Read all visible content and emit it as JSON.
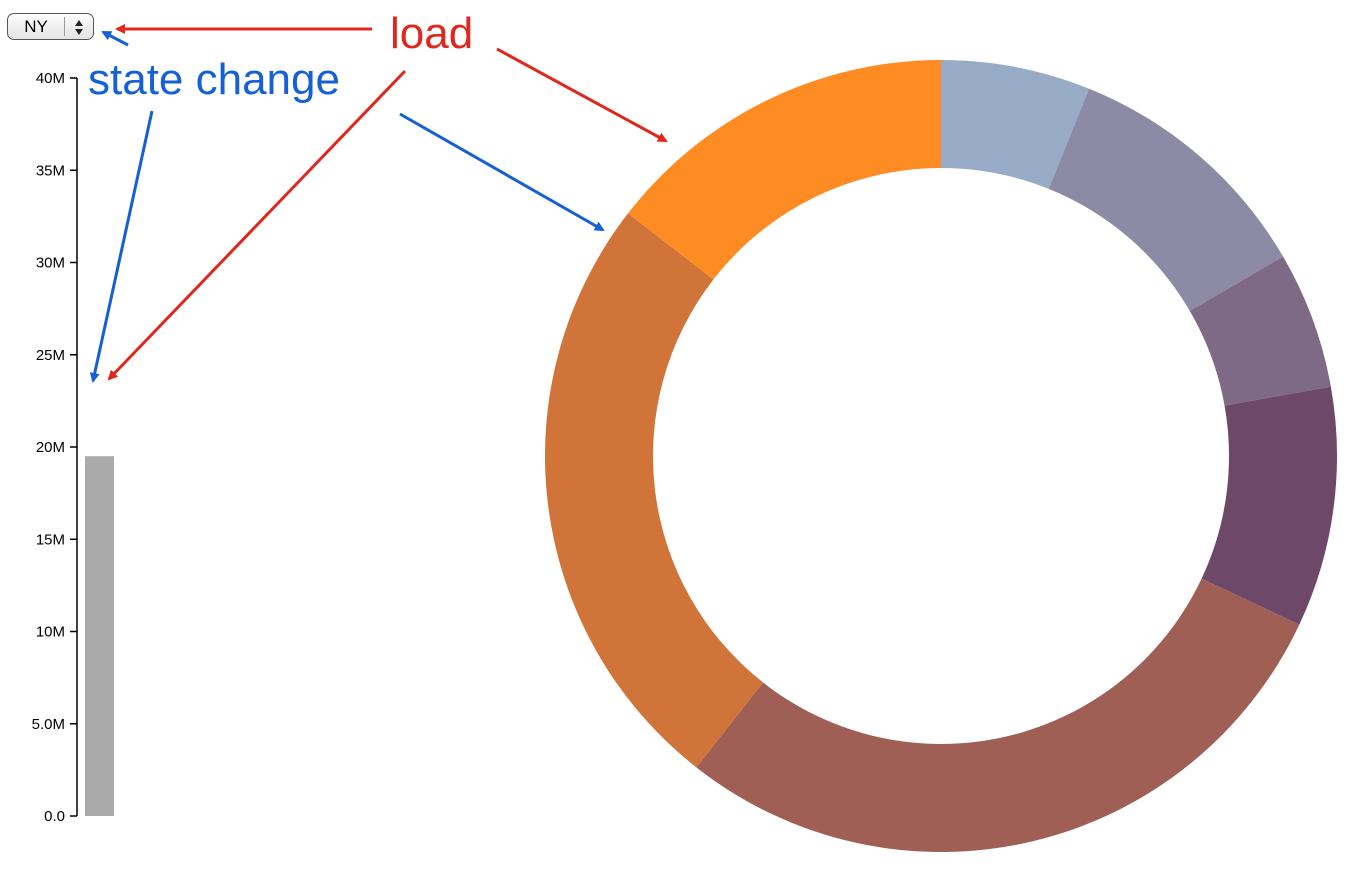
{
  "state_select": {
    "selected": "NY",
    "icon": "updown-arrows-icon"
  },
  "annotations": {
    "load": {
      "text": "load",
      "color": "#e0271c"
    },
    "state_change": {
      "text": "state change",
      "color": "#1560d6"
    }
  },
  "chart_data": [
    {
      "type": "bar",
      "categories": [
        "NY"
      ],
      "values": [
        19.5
      ],
      "ylim": [
        0,
        40
      ],
      "yticks": [
        {
          "value": 0,
          "label": "0.0"
        },
        {
          "value": 5,
          "label": "5.0M"
        },
        {
          "value": 10,
          "label": "10M"
        },
        {
          "value": 15,
          "label": "15M"
        },
        {
          "value": 20,
          "label": "20M"
        },
        {
          "value": 25,
          "label": "25M"
        },
        {
          "value": 30,
          "label": "30M"
        },
        {
          "value": 35,
          "label": "35M"
        },
        {
          "value": 40,
          "label": "40M"
        }
      ],
      "bar_color": "#aaaaaa",
      "grid": false
    },
    {
      "type": "pie",
      "donut": true,
      "values": [
        6.1,
        10.5,
        5.6,
        9.8,
        28.6,
        24.9,
        14.5
      ],
      "colors": [
        "#97abc6",
        "#8c8aa5",
        "#7e6a86",
        "#6d4868",
        "#a05f55",
        "#d0743a",
        "#fe8c22"
      ]
    }
  ]
}
